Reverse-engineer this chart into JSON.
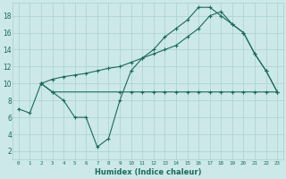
{
  "xlabel": "Humidex (Indice chaleur)",
  "bg_color": "#cce8e8",
  "grid_color": "#aad0d0",
  "line_color": "#1a6b5a",
  "xlim": [
    -0.5,
    23.5
  ],
  "ylim": [
    1.0,
    19.5
  ],
  "yticks": [
    2,
    4,
    6,
    8,
    10,
    12,
    14,
    16,
    18
  ],
  "xticks": [
    0,
    1,
    2,
    3,
    4,
    5,
    6,
    7,
    8,
    9,
    10,
    11,
    12,
    13,
    14,
    15,
    16,
    17,
    18,
    19,
    20,
    21,
    22,
    23
  ],
  "series1_x": [
    0,
    1,
    2,
    3,
    4,
    5,
    6,
    7,
    8,
    9,
    10,
    11,
    12,
    13,
    14,
    15,
    16,
    17,
    18,
    19,
    20,
    21,
    22,
    23
  ],
  "series1_y": [
    7.0,
    6.5,
    10.0,
    9.0,
    8.0,
    6.0,
    6.0,
    2.5,
    3.5,
    8.0,
    11.5,
    13.0,
    14.0,
    15.5,
    16.5,
    17.5,
    19.0,
    19.0,
    18.0,
    17.0,
    16.0,
    13.5,
    11.5,
    9.0
  ],
  "series2_x": [
    2,
    3,
    4,
    5,
    6,
    7,
    8,
    9,
    10,
    11,
    12,
    13,
    14,
    15,
    16,
    17,
    18,
    19,
    20,
    21,
    22,
    23
  ],
  "series2_y": [
    10.0,
    10.5,
    10.8,
    11.0,
    11.2,
    11.5,
    11.8,
    12.0,
    12.5,
    13.0,
    13.5,
    14.0,
    14.5,
    15.5,
    16.5,
    18.0,
    18.5,
    17.0,
    16.0,
    13.5,
    11.5,
    9.0
  ],
  "series3_x": [
    2,
    3,
    9,
    10,
    11,
    12,
    13,
    14,
    15,
    16,
    17,
    18,
    19,
    20,
    21,
    22,
    23
  ],
  "series3_y": [
    10.0,
    9.0,
    9.0,
    9.0,
    9.0,
    9.0,
    9.0,
    9.0,
    9.0,
    9.0,
    9.0,
    9.0,
    9.0,
    9.0,
    9.0,
    9.0,
    9.0
  ]
}
